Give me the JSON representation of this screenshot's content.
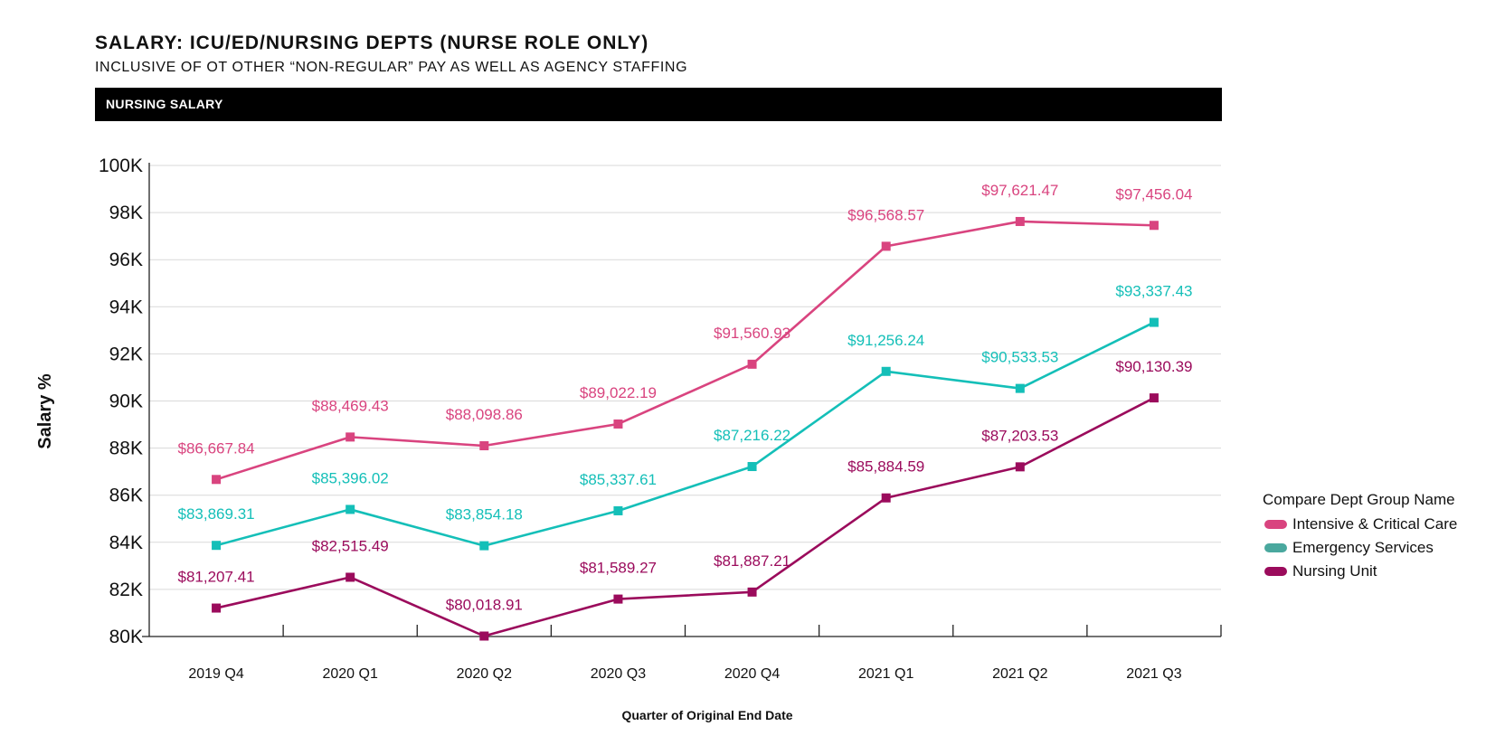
{
  "header": {
    "title": "SALARY: ICU/ED/NURSING DEPTS (NURSE ROLE ONLY)",
    "subtitle": "INCLUSIVE OF OT OTHER “NON-REGULAR” PAY AS WELL AS AGENCY STAFFING",
    "banner": "NURSING SALARY"
  },
  "legend": {
    "title": "Compare Dept Group Name"
  },
  "chart_data": {
    "type": "line",
    "title": "",
    "xlabel": "Quarter of Original End Date",
    "ylabel": "Salary %",
    "categories": [
      "2019 Q4",
      "2020 Q1",
      "2020 Q2",
      "2020 Q3",
      "2020 Q4",
      "2021 Q1",
      "2021 Q2",
      "2021 Q3"
    ],
    "ylim": [
      80000,
      100000
    ],
    "yticks": [
      80000,
      82000,
      84000,
      86000,
      88000,
      90000,
      92000,
      94000,
      96000,
      98000,
      100000
    ],
    "ytick_labels": [
      "80K",
      "82K",
      "84K",
      "86K",
      "88K",
      "90K",
      "92K",
      "94K",
      "96K",
      "98K",
      "100K"
    ],
    "grid": true,
    "legend_position": "right",
    "series": [
      {
        "name": "Intensive & Critical Care",
        "color": "#d9447f",
        "values": [
          86667.84,
          88469.43,
          88098.86,
          89022.19,
          91560.93,
          96568.57,
          97621.47,
          97456.04
        ],
        "labels": [
          "$86,667.84",
          "$88,469.43",
          "$88,098.86",
          "$89,022.19",
          "$91,560.93",
          "$96,568.57",
          "$97,621.47",
          "$97,456.04"
        ]
      },
      {
        "name": "Emergency Services",
        "color": "#14bfb8",
        "legend_color": "#4aa89e",
        "values": [
          83869.31,
          85396.02,
          83854.18,
          85337.61,
          87216.22,
          91256.24,
          90533.53,
          93337.43
        ],
        "labels": [
          "$83,869.31",
          "$85,396.02",
          "$83,854.18",
          "$85,337.61",
          "$87,216.22",
          "$91,256.24",
          "$90,533.53",
          "$93,337.43"
        ]
      },
      {
        "name": "Nursing Unit",
        "color": "#9b0b5c",
        "values": [
          81207.41,
          82515.49,
          80018.91,
          81589.27,
          81887.21,
          85884.59,
          87203.53,
          90130.39
        ],
        "labels": [
          "$81,207.41",
          "$82,515.49",
          "$80,018.91",
          "$81,589.27",
          "$81,887.21",
          "$85,884.59",
          "$87,203.53",
          "$90,130.39"
        ]
      }
    ]
  }
}
